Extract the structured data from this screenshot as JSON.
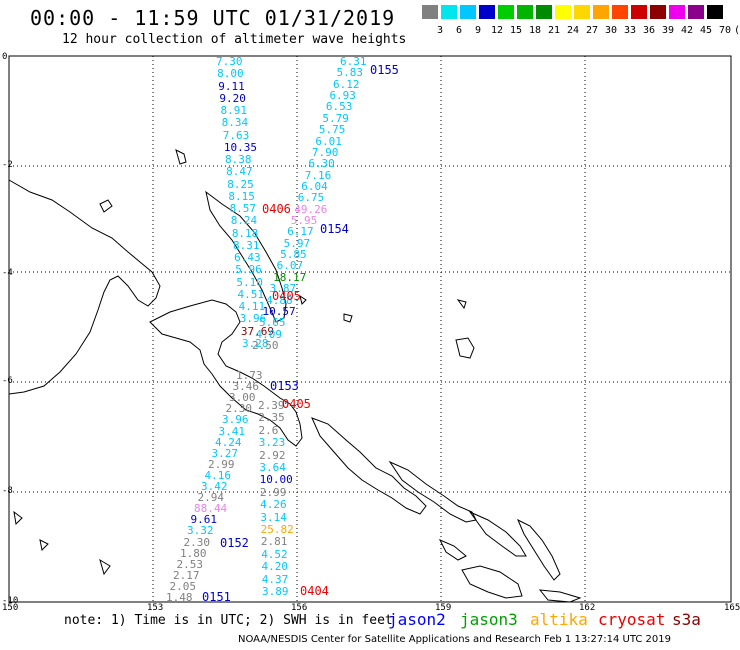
{
  "header": {
    "title": "00:00 - 11:59 UTC 01/31/2019",
    "subtitle": "12 hour collection of altimeter wave heights"
  },
  "color_scale": {
    "swatches": [
      "#808080",
      "#00e5ee",
      "#00c8ff",
      "#0000cd",
      "#00cd00",
      "#00b400",
      "#008b00",
      "#ffff00",
      "#ffd700",
      "#ffa500",
      "#ff4500",
      "#cd0000",
      "#8b0000",
      "#ee00ee",
      "#8b008b",
      "#000000"
    ],
    "labels": [
      "3",
      "6",
      "9",
      "12",
      "15",
      "18",
      "21",
      "24",
      "27",
      "30",
      "33",
      "36",
      "39",
      "42",
      "45",
      "70",
      "(ft)"
    ]
  },
  "axes": {
    "lat_labels": [
      "0",
      "-2",
      "-4",
      "-6",
      "-8",
      "-10"
    ],
    "lon_labels": [
      "150",
      "153",
      "156",
      "159",
      "162",
      "165"
    ]
  },
  "passes": [
    {
      "id": "0155",
      "color": "#0000cd"
    },
    {
      "id": "0154",
      "color": "#0000cd"
    },
    {
      "id": "0406",
      "color": "#ee0000"
    },
    {
      "id": "0405",
      "color": "#ee0000"
    },
    {
      "id": "0153",
      "color": "#0000cd"
    },
    {
      "id": "0405",
      "color": "#ee0000"
    },
    {
      "id": "0152",
      "color": "#0000cd"
    },
    {
      "id": "0151",
      "color": "#0000cd"
    },
    {
      "id": "0404",
      "color": "#ee0000"
    }
  ],
  "tracks": {
    "track_a": {
      "values": [
        "7.30",
        "8.00",
        "9.11",
        "9.20",
        "8.91",
        "8.34",
        "7.63",
        "10.35",
        "8.38",
        "8.47",
        "8.25",
        "8.15",
        "8.57",
        "8.24",
        "8.18",
        "8.31",
        "6.43",
        "5.96",
        "5.10",
        "4.51",
        "4.11",
        "3.96",
        "37.69",
        "3.28"
      ],
      "colors": [
        "#00c8ff",
        "#00c8ff",
        "#0000cd",
        "#0000cd",
        "#00c8ff",
        "#00c8ff",
        "#00c8ff",
        "#0000cd",
        "#00c8ff",
        "#00c8ff",
        "#00c8ff",
        "#00c8ff",
        "#00c8ff",
        "#00c8ff",
        "#00c8ff",
        "#00c8ff",
        "#00c8ff",
        "#00c8ff",
        "#00c8ff",
        "#00c8ff",
        "#00c8ff",
        "#00c8ff",
        "#8b0000",
        "#00c8ff"
      ]
    },
    "track_b": {
      "values": [
        "6.31",
        "5.83",
        "6.12",
        "6.93",
        "6.53",
        "5.79",
        "5.75",
        "6.01",
        "7.90",
        "6.30",
        "7.16",
        "6.04",
        "6.75",
        "49.26",
        "5.95",
        "6.17",
        "5.97",
        "5.85",
        "6.07",
        "18.17",
        "3.87",
        "4.88",
        "10.57",
        "5.65",
        "4.09",
        "2.50"
      ],
      "colors": [
        "#00c8ff",
        "#00c8ff",
        "#00c8ff",
        "#00c8ff",
        "#00c8ff",
        "#00c8ff",
        "#00c8ff",
        "#00c8ff",
        "#00c8ff",
        "#00c8ff",
        "#00c8ff",
        "#00c8ff",
        "#00c8ff",
        "#ee82ee",
        "#ee82ee",
        "#00c8ff",
        "#00c8ff",
        "#00c8ff",
        "#00c8ff",
        "#008b00",
        "#00c8ff",
        "#00c8ff",
        "#0000cd",
        "#00c8ff",
        "#00c8ff",
        "#808080"
      ]
    },
    "track_c": {
      "values": [
        "1.73",
        "3.46",
        "3.00",
        "2.30",
        "3.96",
        "3.41",
        "4.24",
        "3.27",
        "2.99",
        "4.16",
        "3.42",
        "2.94",
        "88.44",
        "9.61",
        "3.32",
        "2.30",
        "1.80",
        "2.53",
        "2.17",
        "2.05",
        "1.48"
      ],
      "colors": [
        "#808080",
        "#808080",
        "#808080",
        "#808080",
        "#00c8ff",
        "#00c8ff",
        "#00c8ff",
        "#00c8ff",
        "#808080",
        "#00c8ff",
        "#00c8ff",
        "#808080",
        "#ee82ee",
        "#0000cd",
        "#00c8ff",
        "#808080",
        "#808080",
        "#808080",
        "#808080",
        "#808080",
        "#808080"
      ]
    },
    "track_d": {
      "values": [
        "2.39",
        "2.35",
        "2.6",
        "3.23",
        "2.92",
        "3.64",
        "10.00",
        "2.99",
        "4.26",
        "3.14",
        "25.82",
        "2.81",
        "4.52",
        "4.20",
        "4.37",
        "3.89"
      ],
      "colors": [
        "#808080",
        "#808080",
        "#808080",
        "#00c8ff",
        "#808080",
        "#00c8ff",
        "#0000cd",
        "#808080",
        "#00c8ff",
        "#00c8ff",
        "#ffa500",
        "#808080",
        "#00c8ff",
        "#00c8ff",
        "#00c8ff",
        "#00c8ff"
      ]
    }
  },
  "footer": {
    "note": "note: 1) Time is in UTC; 2) SWH is in feet",
    "legend": [
      {
        "label": "jason2",
        "color": "#0000ff"
      },
      {
        "label": "jason3",
        "color": "#00a000"
      },
      {
        "label": "altika",
        "color": "#ffa500"
      },
      {
        "label": "cryosat",
        "color": "#ee0000"
      },
      {
        "label": "s3a",
        "color": "#8b0000"
      }
    ],
    "credit": "NOAA/NESDIS Center for Satellite Applications and Research  Feb  1 13:27:14 UTC 2019"
  }
}
